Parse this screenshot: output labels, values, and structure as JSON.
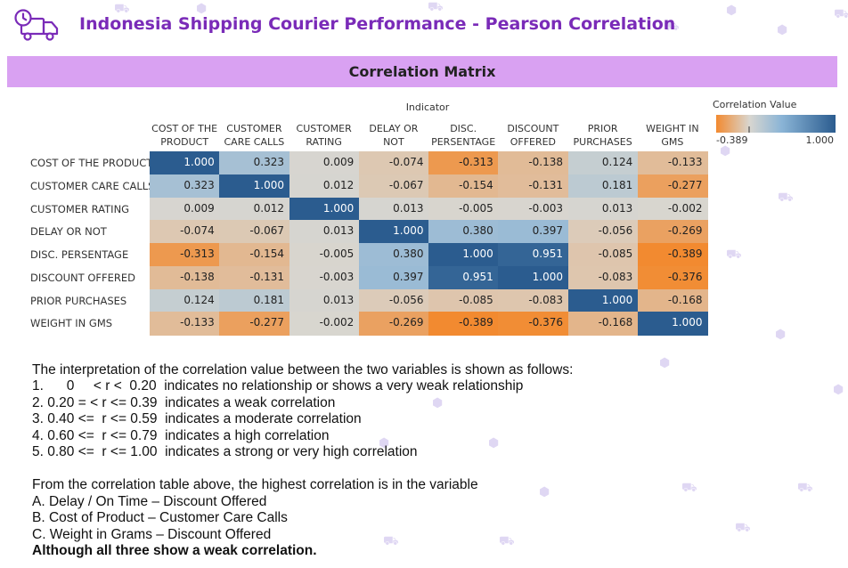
{
  "header": {
    "title": "Indonesia Shipping Courier Performance - Pearson Correlation",
    "icon": "delivery-truck-clock-icon"
  },
  "banner": {
    "title": "Correlation Matrix"
  },
  "colors": {
    "banner_bg": "#d9a1f2",
    "title_color": "#7a2bb8",
    "negative": "#f28a30",
    "neutral": "#d8d6d0",
    "positive": "#2b5c8f"
  },
  "chart_data": {
    "type": "heatmap",
    "title": "Correlation Matrix",
    "column_axis_label": "Indicator",
    "columns": [
      "COST OF THE PRODUCT",
      "CUSTOMER CARE CALLS",
      "CUSTOMER RATING",
      "DELAY OR NOT",
      "DISC. PERSENTAGE",
      "DISCOUNT OFFERED",
      "PRIOR PURCHASES",
      "WEIGHT IN GMS"
    ],
    "rows": [
      "COST OF THE PRODUCT",
      "CUSTOMER CARE CALLS",
      "CUSTOMER RATING",
      "DELAY OR NOT",
      "DISC. PERSENTAGE",
      "DISCOUNT OFFERED",
      "PRIOR PURCHASES",
      "WEIGHT IN GMS"
    ],
    "values": [
      [
        "1.000",
        "0.323",
        "0.009",
        "-0.074",
        "-0.313",
        "-0.138",
        "0.124",
        "-0.133"
      ],
      [
        "0.323",
        "1.000",
        "0.012",
        "-0.067",
        "-0.154",
        "-0.131",
        "0.181",
        "-0.277"
      ],
      [
        "0.009",
        "0.012",
        "1.000",
        "0.013",
        "-0.005",
        "-0.003",
        "0.013",
        "-0.002"
      ],
      [
        "-0.074",
        "-0.067",
        "0.013",
        "1.000",
        "0.380",
        "0.397",
        "-0.056",
        "-0.269"
      ],
      [
        "-0.313",
        "-0.154",
        "-0.005",
        "0.380",
        "1.000",
        "0.951",
        "-0.085",
        "-0.389"
      ],
      [
        "-0.138",
        "-0.131",
        "-0.003",
        "0.397",
        "0.951",
        "1.000",
        "-0.083",
        "-0.376"
      ],
      [
        "0.124",
        "0.181",
        "0.013",
        "-0.056",
        "-0.085",
        "-0.083",
        "1.000",
        "-0.168"
      ],
      [
        "-0.133",
        "-0.277",
        "-0.002",
        "-0.269",
        "-0.389",
        "-0.376",
        "-0.168",
        "1.000"
      ]
    ],
    "legend": {
      "title": "Correlation Value",
      "min": "-0.389",
      "max": "1.000",
      "placement": "top-right"
    }
  },
  "interpretation": {
    "intro": "The interpretation of the correlation value between the two variables is shown as follows:",
    "items": [
      "1.      0     < r <  0.20  indicates no relationship or shows a very weak relationship",
      "2. 0.20 = < r <= 0.39  indicates a weak correlation",
      "3. 0.40 <=  r <= 0.59  indicates a moderate correlation",
      "4. 0.60 <=  r <= 0.79  indicates a high correlation",
      "5. 0.80 <=  r <= 1.00  indicates a strong or very high correlation"
    ],
    "conclusion_intro": "From the correlation table above, the highest correlation is in the variable",
    "pairs": [
      "A. Delay / On Time – Discount Offered",
      "B. Cost of Product – Customer Care Calls",
      "C. Weight in Grams – Discount Offered"
    ],
    "final_note": "Although all three show a weak correlation."
  }
}
